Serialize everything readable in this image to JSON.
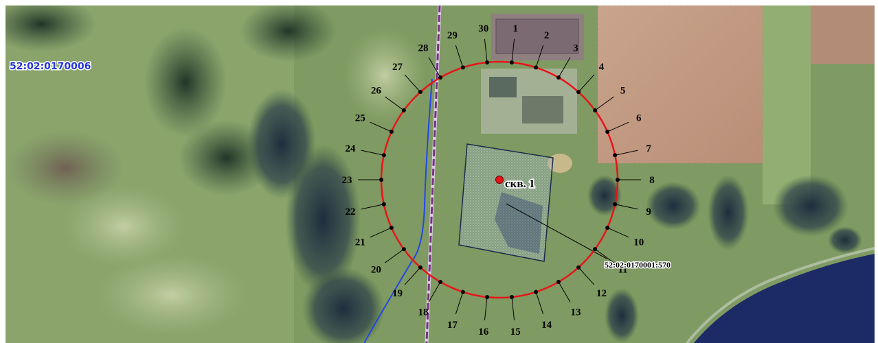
{
  "map": {
    "block_id": "52:02:0170006",
    "well_label": "скв. 1",
    "parcel_label": "52:02:0170001:570",
    "ring_color": "#e8141a",
    "parcel_line_color": "#2333d8",
    "road_line_color": "#7a2f8a",
    "stream_color": "#2248e6",
    "well_marker_color": "#e8141a",
    "points": [
      "1",
      "2",
      "3",
      "4",
      "5",
      "6",
      "7",
      "8",
      "9",
      "10",
      "11",
      "12",
      "13",
      "14",
      "15",
      "16",
      "17",
      "18",
      "19",
      "20",
      "21",
      "22",
      "23",
      "24",
      "25",
      "26",
      "27",
      "28",
      "29",
      "30"
    ]
  }
}
